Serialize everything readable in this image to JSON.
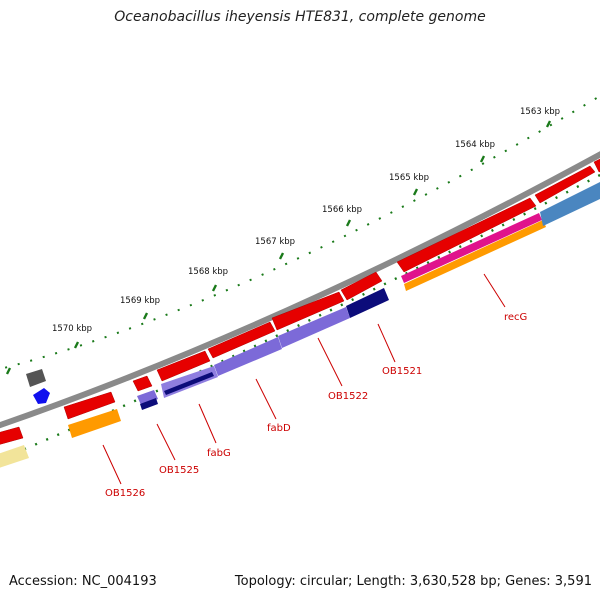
{
  "title": "Oceanobacillus iheyensis HTE831, complete genome",
  "footer": {
    "accession": "Accession: NC_004193",
    "summary": "Topology: circular; Length: 3,630,528 bp; Genes: 3,591"
  },
  "scale_ticks": [
    {
      "label": "1563 kbp"
    },
    {
      "label": "1564 kbp"
    },
    {
      "label": "1565 kbp"
    },
    {
      "label": "1566 kbp"
    },
    {
      "label": "1567 kbp"
    },
    {
      "label": "1568 kbp"
    },
    {
      "label": "1569 kbp"
    },
    {
      "label": "1570 kbp"
    }
  ],
  "gene_labels": [
    {
      "name": "recG"
    },
    {
      "name": "OB1521"
    },
    {
      "name": "OB1522"
    },
    {
      "name": "fabD"
    },
    {
      "name": "fabG"
    },
    {
      "name": "OB1525"
    },
    {
      "name": "OB1526"
    }
  ],
  "colors": {
    "backbone": "#8a8a8a",
    "gene_forward": "#e60000",
    "cog_magenta": "#e0138c",
    "cog_orange": "#ff9a00",
    "cog_purple": "#7c6ad8",
    "cog_navy": "#0c0c7a",
    "cog_steelblue": "#4a86c0",
    "cog_yellow": "#f2e49a",
    "cog_gray": "#555555",
    "cog_blue": "#1010ee",
    "tick": "#1a7a1a",
    "label": "#cc0000"
  }
}
